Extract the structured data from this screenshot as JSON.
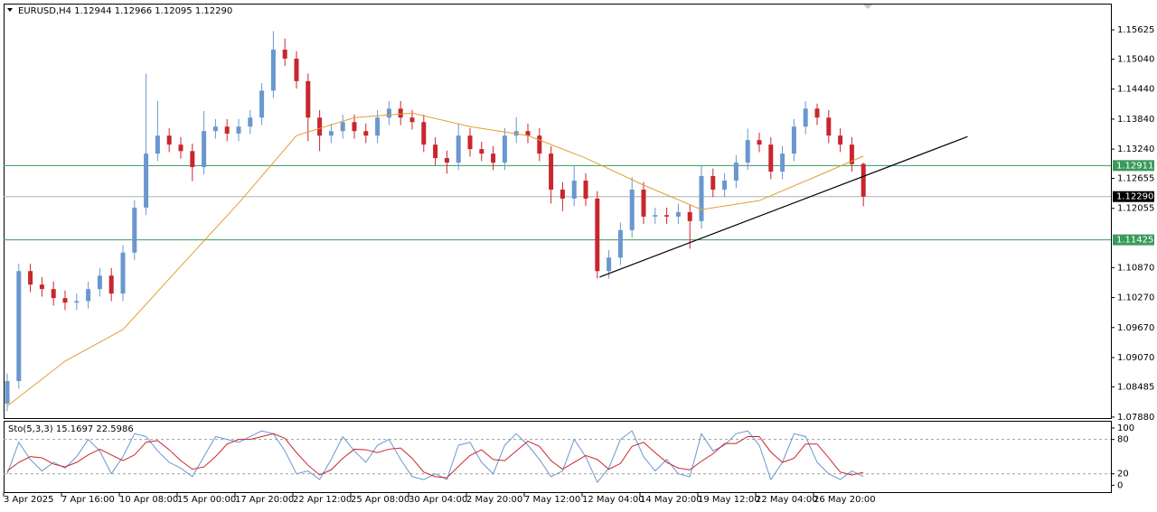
{
  "chart_data": {
    "type": "candlestick",
    "symbol": "EURUSD,H4",
    "last_bar_labels": [
      "1.12944",
      "1.12966",
      "1.12095",
      "1.12290"
    ],
    "categories": [
      "3 Apr 2025",
      null,
      null,
      null,
      null,
      "7 Apr 16:00",
      null,
      null,
      null,
      null,
      "10 Apr 08:00",
      null,
      null,
      null,
      null,
      "15 Apr 00:00",
      null,
      null,
      null,
      null,
      "17 Apr 20:00",
      null,
      null,
      null,
      null,
      "22 Apr 12:00",
      null,
      null,
      null,
      null,
      "25 Apr 08:00",
      null,
      null,
      null,
      null,
      "30 Apr 04:00",
      null,
      null,
      null,
      null,
      "2 May 20:00",
      null,
      null,
      null,
      null,
      "7 May 12:00",
      null,
      null,
      null,
      null,
      "12 May 04:00",
      null,
      null,
      null,
      null,
      "14 May 20:00",
      null,
      null,
      null,
      null,
      "19 May 12:00",
      null,
      null,
      null,
      null,
      "22 May 04:00",
      null,
      null,
      null,
      null,
      "26 May 20:00",
      null,
      null,
      null,
      null
    ],
    "open": [
      1.0815,
      1.086,
      1.108,
      1.1053,
      1.1044,
      1.1026,
      1.1017,
      1.102,
      1.1044,
      1.1071,
      1.1035,
      1.1117,
      1.1207,
      1.1315,
      1.1351,
      1.1333,
      1.132,
      1.1288,
      1.136,
      1.1369,
      1.1355,
      1.1369,
      1.1387,
      1.1441,
      1.1523,
      1.1505,
      1.146,
      1.1387,
      1.1351,
      1.136,
      1.1378,
      1.136,
      1.1351,
      1.1387,
      1.1405,
      1.1387,
      1.1378,
      1.1333,
      1.1306,
      1.1297,
      1.1351,
      1.1324,
      1.1315,
      1.1297,
      1.1351,
      1.136,
      1.1351,
      1.1315,
      1.1243,
      1.1225,
      1.1261,
      1.1225,
      1.108,
      1.1107,
      1.1162,
      1.1243,
      1.1189,
      1.1192,
      1.1189,
      1.1198,
      1.118,
      1.127,
      1.1243,
      1.1261,
      1.1297,
      1.1342,
      1.1333,
      1.1279,
      1.1315,
      1.1369,
      1.1405,
      1.1387,
      1.1351,
      1.1333,
      1.12944
    ],
    "high": [
      1.0875,
      1.1095,
      1.1095,
      1.1068,
      1.1059,
      1.1041,
      1.1035,
      1.1059,
      1.1086,
      1.1086,
      1.1132,
      1.1222,
      1.1475,
      1.142,
      1.1366,
      1.1348,
      1.1335,
      1.14,
      1.1384,
      1.1384,
      1.1384,
      1.1402,
      1.1456,
      1.156,
      1.1545,
      1.152,
      1.1475,
      1.1402,
      1.1375,
      1.1393,
      1.1393,
      1.1375,
      1.1402,
      1.142,
      1.142,
      1.1402,
      1.1393,
      1.1348,
      1.1321,
      1.1375,
      1.1366,
      1.1339,
      1.133,
      1.1366,
      1.1388,
      1.1375,
      1.1366,
      1.133,
      1.1258,
      1.129,
      1.1276,
      1.124,
      1.1122,
      1.1177,
      1.1268,
      1.1258,
      1.1207,
      1.1207,
      1.1215,
      1.1213,
      1.129,
      1.1285,
      1.1276,
      1.1312,
      1.1365,
      1.1357,
      1.1348,
      1.133,
      1.1384,
      1.142,
      1.1415,
      1.1402,
      1.1366,
      1.1348,
      1.12966
    ],
    "low": [
      1.08,
      1.0845,
      1.1038,
      1.1029,
      1.1011,
      1.1002,
      1.1002,
      1.1005,
      1.1029,
      1.102,
      1.102,
      1.1102,
      1.1192,
      1.13,
      1.1318,
      1.1305,
      1.126,
      1.1273,
      1.1345,
      1.134,
      1.134,
      1.1354,
      1.1372,
      1.1426,
      1.149,
      1.1445,
      1.134,
      1.132,
      1.1336,
      1.1345,
      1.1345,
      1.1336,
      1.1336,
      1.1372,
      1.1372,
      1.1363,
      1.1318,
      1.1291,
      1.1275,
      1.1282,
      1.1309,
      1.13,
      1.1282,
      1.1282,
      1.1336,
      1.1336,
      1.13,
      1.1215,
      1.12,
      1.121,
      1.121,
      1.1065,
      1.1065,
      1.1092,
      1.1147,
      1.1174,
      1.1174,
      1.1174,
      1.1174,
      1.1125,
      1.1165,
      1.1228,
      1.1228,
      1.1246,
      1.1282,
      1.1318,
      1.1264,
      1.1264,
      1.13,
      1.1354,
      1.1372,
      1.1336,
      1.1318,
      1.1279,
      1.12095
    ],
    "close": [
      1.086,
      1.108,
      1.1053,
      1.1044,
      1.1026,
      1.1017,
      1.102,
      1.1044,
      1.1071,
      1.1035,
      1.1117,
      1.1207,
      1.1315,
      1.1351,
      1.1333,
      1.132,
      1.1288,
      1.136,
      1.1369,
      1.1355,
      1.1369,
      1.1387,
      1.1441,
      1.1523,
      1.1505,
      1.146,
      1.1387,
      1.1351,
      1.136,
      1.1378,
      1.136,
      1.1351,
      1.1387,
      1.1405,
      1.1387,
      1.1378,
      1.1333,
      1.1306,
      1.1297,
      1.1351,
      1.1324,
      1.1315,
      1.1297,
      1.1351,
      1.136,
      1.1351,
      1.1315,
      1.1243,
      1.1225,
      1.1261,
      1.1225,
      1.108,
      1.1107,
      1.1162,
      1.1243,
      1.1189,
      1.1192,
      1.1189,
      1.1198,
      1.118,
      1.127,
      1.1243,
      1.1261,
      1.1297,
      1.1342,
      1.1333,
      1.1279,
      1.1315,
      1.1369,
      1.1405,
      1.1387,
      1.1351,
      1.1333,
      1.1294,
      1.1229
    ],
    "up_color": "#6a97cf",
    "down_color": "#c9262e",
    "ylim": [
      1.0786,
      1.1615
    ],
    "yticks": [
      1.15625,
      {
        "value": 1.1504,
        "label": "1.15040"
      },
      {
        "value": 1.1444,
        "label": "1.14440"
      },
      {
        "value": 1.1384,
        "label": "1.13840"
      },
      {
        "value": 1.1324,
        "label": "1.13240"
      },
      1.12655,
      1.12055,
      {
        "value": 1.1087,
        "label": "1.10870"
      },
      {
        "value": 1.1027,
        "label": "1.10270"
      },
      {
        "value": 1.0967,
        "label": "1.09670"
      },
      {
        "value": 1.0907,
        "label": "1.09070"
      },
      1.08485,
      {
        "value": 1.0788,
        "label": "1.07880"
      }
    ],
    "moving_average": {
      "color": "#e0a030",
      "x": [
        0,
        5,
        10,
        15,
        20,
        25,
        30,
        35,
        40,
        45,
        50,
        55,
        60,
        65,
        70,
        74
      ],
      "values": [
        1.081,
        1.09,
        1.0963,
        1.109,
        1.1216,
        1.1351,
        1.1387,
        1.1396,
        1.1369,
        1.1351,
        1.1306,
        1.1252,
        1.1203,
        1.1221,
        1.127,
        1.131
      ]
    },
    "hlines": [
      {
        "value": 1.12911,
        "color": "#3a9a5b"
      },
      {
        "value": 1.11425,
        "color": "#3a9a5b"
      }
    ],
    "trendline": {
      "color": "#000000",
      "x": [
        51.2,
        83
      ],
      "y": [
        1.1068,
        1.1349
      ]
    },
    "oscillator": {
      "name": "Sto(5,3,3)",
      "ylim": [
        -12,
        111
      ],
      "yticks": [
        0,
        20,
        80,
        100
      ],
      "levels": [
        20,
        80
      ],
      "series": [
        {
          "color": "#6a97cf",
          "values": [
            20,
            75,
            45,
            25,
            40,
            30,
            50,
            80,
            60,
            20,
            50,
            90,
            85,
            60,
            40,
            30,
            15,
            50,
            85,
            80,
            75,
            85,
            95,
            90,
            60,
            20,
            25,
            10,
            45,
            85,
            60,
            40,
            70,
            80,
            45,
            15,
            10,
            20,
            10,
            70,
            75,
            40,
            20,
            70,
            90,
            70,
            45,
            15,
            25,
            80,
            50,
            5,
            30,
            80,
            95,
            50,
            25,
            45,
            20,
            15,
            90,
            60,
            70,
            90,
            95,
            70,
            10,
            40,
            90,
            85,
            40,
            20,
            10,
            25,
            15.1697
          ]
        },
        {
          "color": "#c9262e",
          "values": [
            25,
            40,
            50,
            48,
            37,
            32,
            40,
            53,
            63,
            53,
            43,
            53,
            75,
            78,
            62,
            43,
            28,
            32,
            50,
            72,
            80,
            80,
            85,
            90,
            82,
            57,
            35,
            18,
            27,
            47,
            63,
            62,
            57,
            63,
            65,
            47,
            23,
            15,
            13,
            33,
            52,
            62,
            45,
            43,
            60,
            77,
            68,
            43,
            28,
            40,
            52,
            45,
            28,
            38,
            68,
            75,
            57,
            40,
            30,
            27,
            42,
            55,
            73,
            73,
            85,
            85,
            58,
            40,
            47,
            72,
            72,
            48,
            23,
            18,
            22.5986
          ]
        }
      ]
    }
  }
}
